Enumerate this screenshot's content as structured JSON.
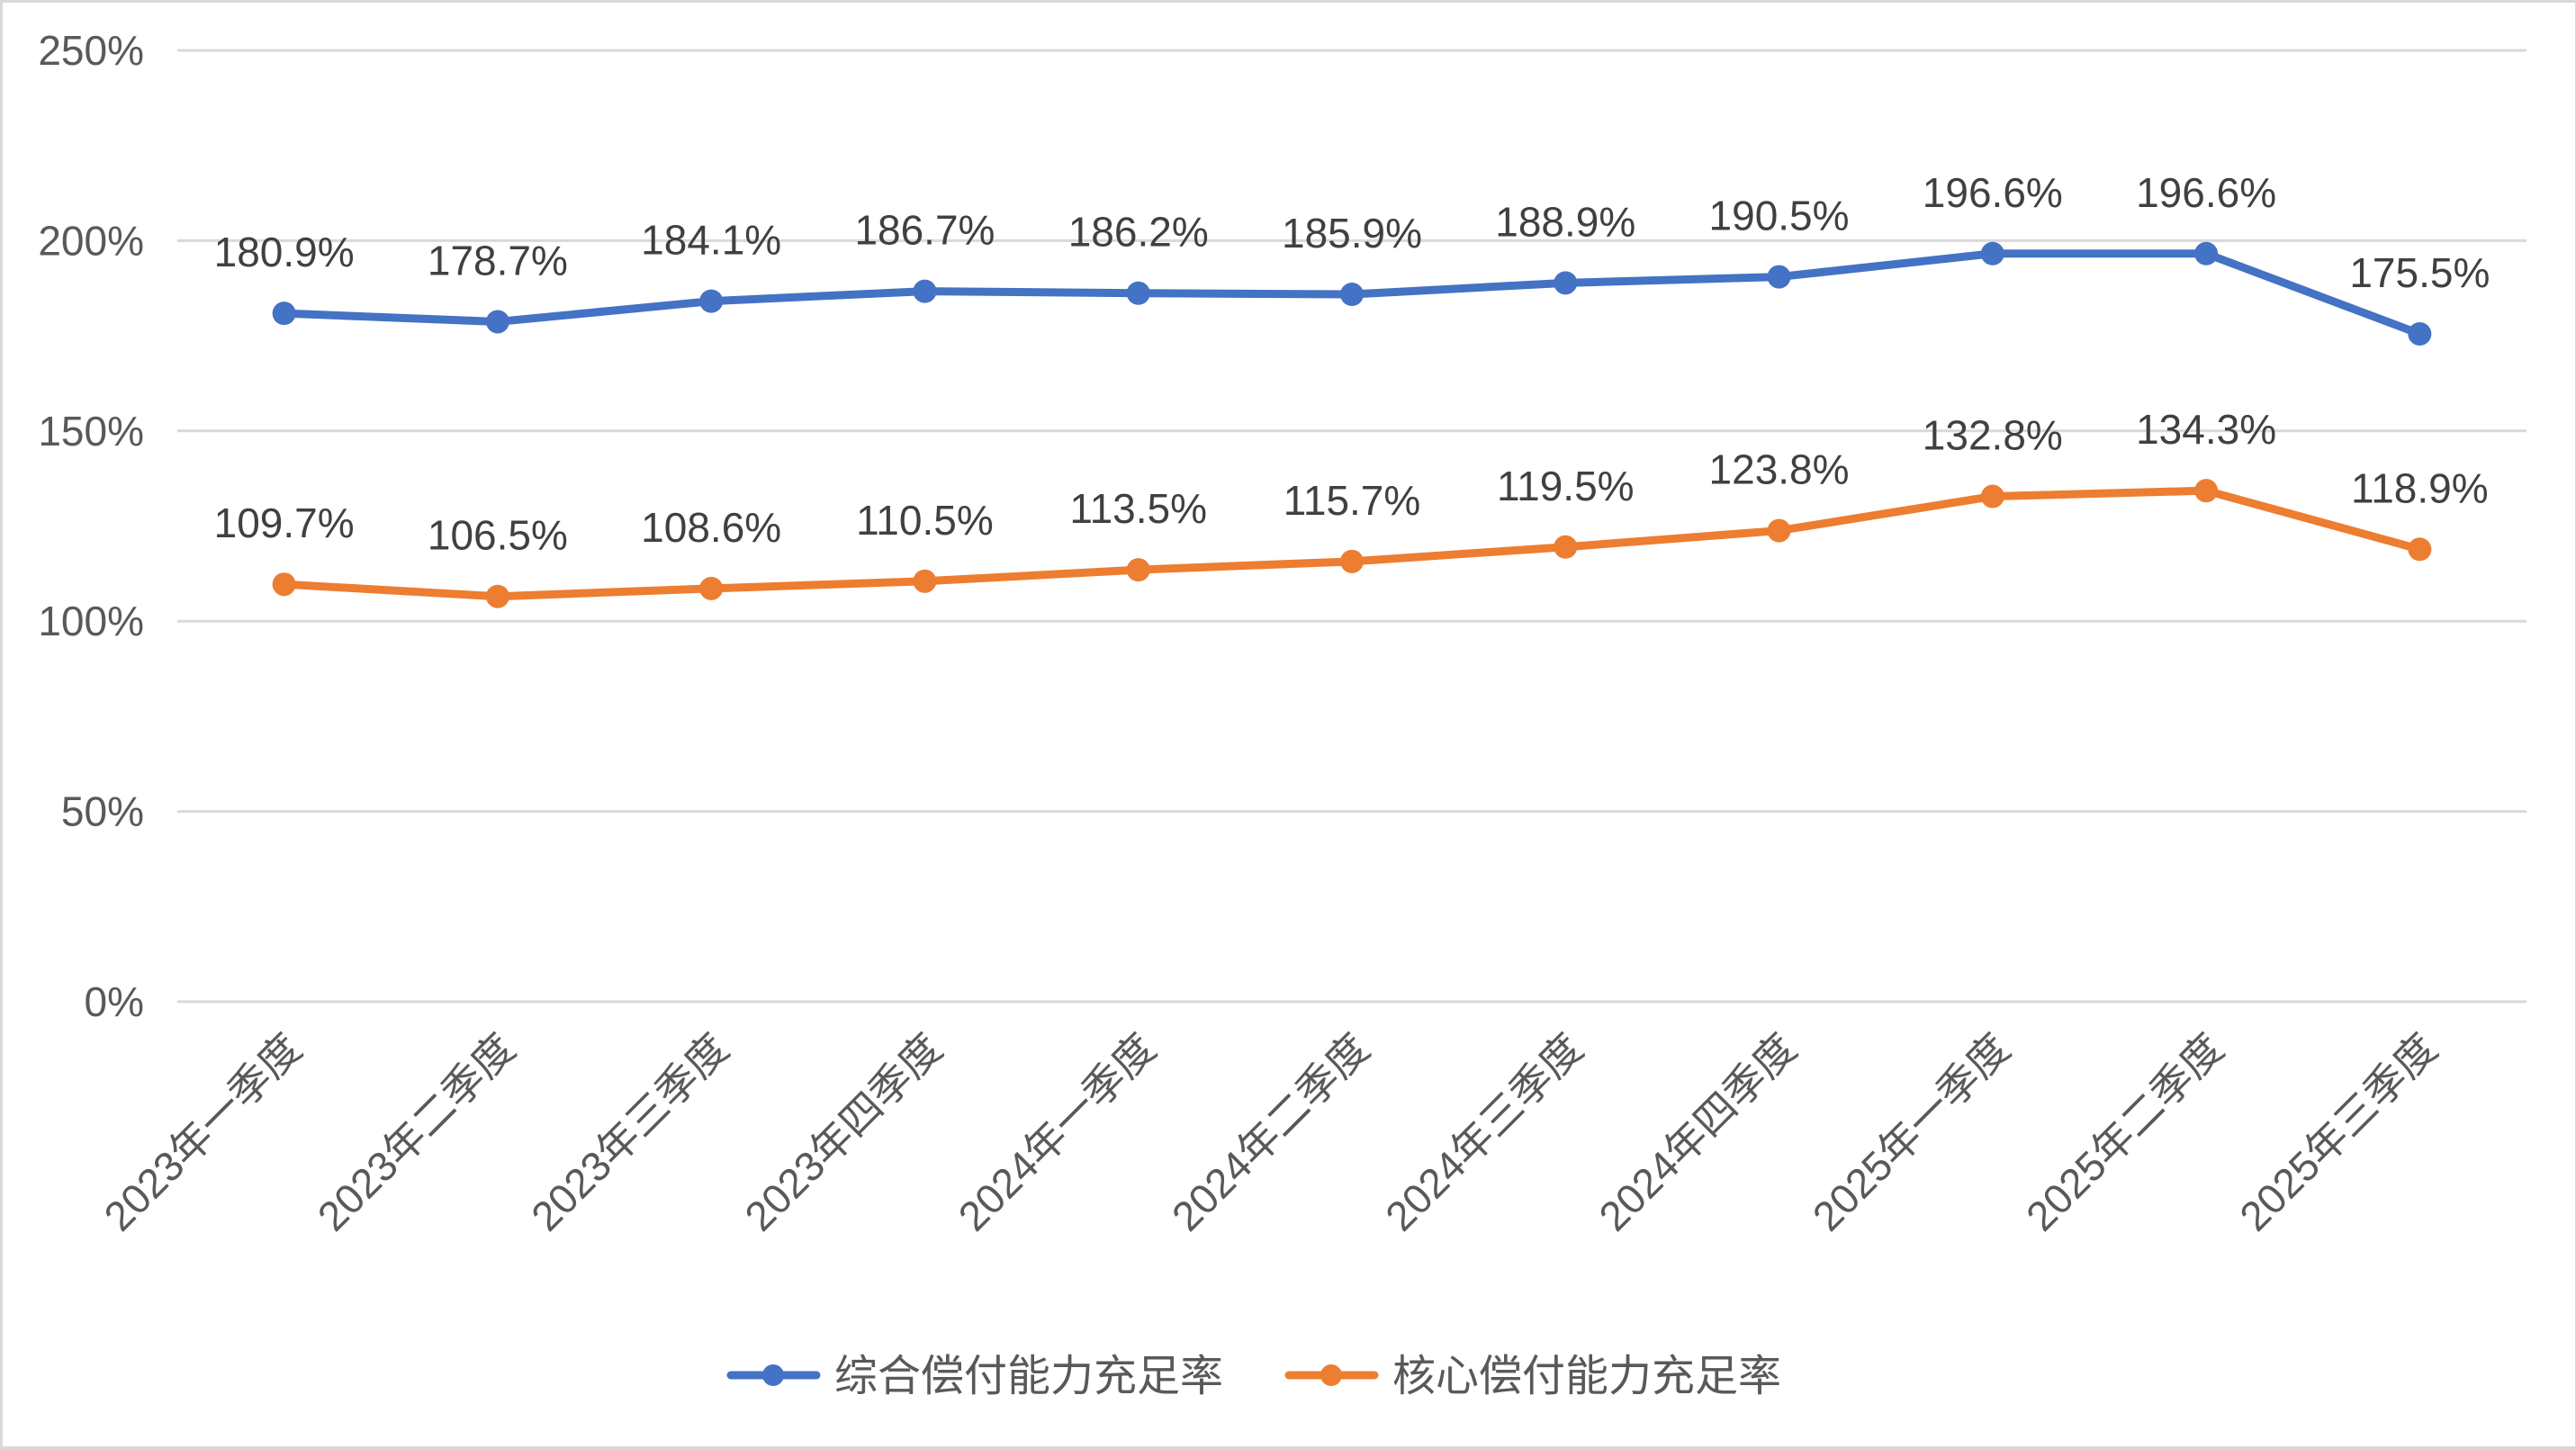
{
  "chart_data": {
    "type": "line",
    "title": "",
    "xlabel": "",
    "ylabel": "",
    "ylim": [
      0,
      250
    ],
    "y_ticks": [
      "0%",
      "50%",
      "100%",
      "150%",
      "200%",
      "250%"
    ],
    "y_tick_values": [
      0,
      50,
      100,
      150,
      200,
      250
    ],
    "grid": true,
    "legend_position": "bottom",
    "categories": [
      "2023年一季度",
      "2023年二季度",
      "2023年三季度",
      "2023年四季度",
      "2024年一季度",
      "2024年二季度",
      "2024年三季度",
      "2024年四季度",
      "2025年一季度",
      "2025年二季度",
      "2025年三季度"
    ],
    "series": [
      {
        "name": "综合偿付能力充足率",
        "color": "#4472C4",
        "values": [
          180.9,
          178.7,
          184.1,
          186.7,
          186.2,
          185.9,
          188.9,
          190.5,
          196.6,
          196.6,
          175.5
        ],
        "labels": [
          "180.9%",
          "178.7%",
          "184.1%",
          "186.7%",
          "186.2%",
          "185.9%",
          "188.9%",
          "190.5%",
          "196.6%",
          "196.6%",
          "175.5%"
        ]
      },
      {
        "name": "核心偿付能力充足率",
        "color": "#ED7D31",
        "values": [
          109.7,
          106.5,
          108.6,
          110.5,
          113.5,
          115.7,
          119.5,
          123.8,
          132.8,
          134.3,
          118.9
        ],
        "labels": [
          "109.7%",
          "106.5%",
          "108.6%",
          "110.5%",
          "113.5%",
          "115.7%",
          "119.5%",
          "123.8%",
          "132.8%",
          "134.3%",
          "118.9%"
        ]
      }
    ]
  }
}
